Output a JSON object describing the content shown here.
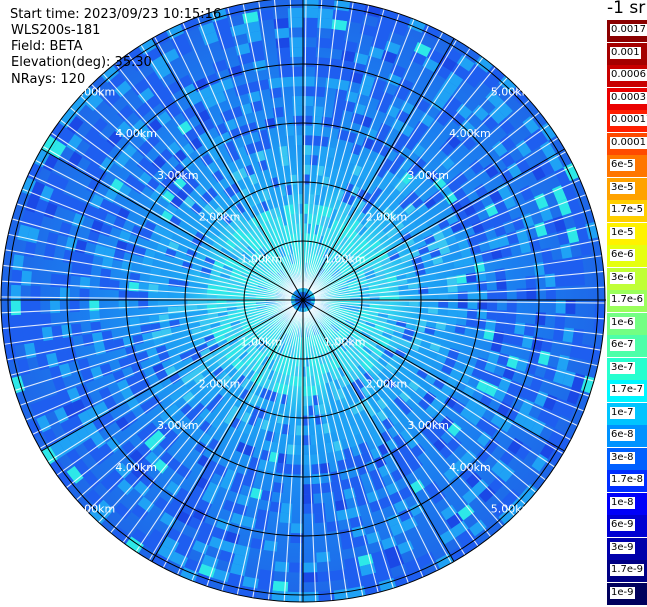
{
  "header": {
    "start_time": "Start time: 2023/09/23 10:15:16",
    "instrument": "WLS200s-181",
    "field": "Field: BETA",
    "elevation": "Elevation(deg): 35.30",
    "nrays": "NRays: 120"
  },
  "colorbar": {
    "unit_label": "-1 sr",
    "ticks": [
      "0.0017",
      "0.001",
      "0.0006",
      "0.0003",
      "0.00017",
      "0.0001",
      "6e-5",
      "3e-5",
      "1.7e-5",
      "1e-5",
      "6e-6",
      "3e-6",
      "1.7e-6",
      "1e-6",
      "6e-7",
      "3e-7",
      "1.7e-7",
      "1e-7",
      "6e-8",
      "3e-8",
      "1.7e-8",
      "1e-8",
      "6e-9",
      "3e-9",
      "1.7e-9",
      "1e-9"
    ],
    "colors": [
      "#8b0000",
      "#a50000",
      "#c80000",
      "#ea0000",
      "#ff1e00",
      "#ff4a00",
      "#ff7600",
      "#ffa200",
      "#ffce00",
      "#fff200",
      "#e6ff10",
      "#c0ff36",
      "#9aff5c",
      "#73ff83",
      "#4dffa9",
      "#27ffcf",
      "#00f6ff",
      "#00c4ff",
      "#0092ff",
      "#0060ff",
      "#002eff",
      "#0000f9",
      "#0000d2",
      "#0000ab",
      "#000084",
      "#00005d"
    ]
  },
  "map_data": {
    "range_ring_labels": [
      "1.00km",
      "2.00km",
      "3.00km",
      "4.00km",
      "5.00km"
    ],
    "range_ring_km": [
      1,
      2,
      3,
      4,
      5
    ],
    "spoke_count": 12,
    "colors": {
      "low": "#1e5ef0",
      "mid": "#1fa2f5",
      "high": "#2de8e8",
      "gap": "#ffffff"
    }
  }
}
